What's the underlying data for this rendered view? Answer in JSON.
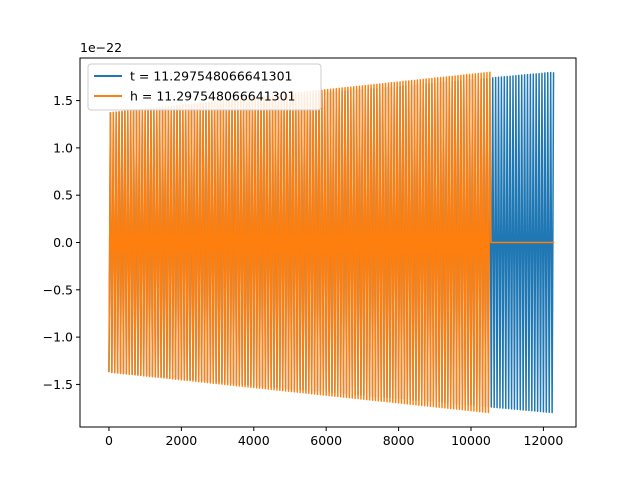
{
  "chart_data": {
    "type": "line",
    "title": "",
    "xlabel": "",
    "ylabel": "",
    "y_offset_label": "1e−22",
    "xlim": [
      -800,
      12900
    ],
    "ylim": [
      -1.95,
      1.95
    ],
    "xticks": [
      0,
      2000,
      4000,
      6000,
      8000,
      10000,
      12000
    ],
    "xtick_labels": [
      "0",
      "2000",
      "4000",
      "6000",
      "8000",
      "10000",
      "12000"
    ],
    "yticks": [
      -1.5,
      -1.0,
      -0.5,
      0.0,
      0.5,
      1.0,
      1.5
    ],
    "ytick_labels": [
      "−1.5",
      "−1.0",
      "−0.5",
      "0.0",
      "0.5",
      "1.0",
      "1.5"
    ],
    "grid": false,
    "legend_position": "upper-left",
    "series": [
      {
        "name": "t = 11.297548066641301",
        "color": "#1f77b4",
        "x_start": 0,
        "x_end": 12300,
        "amplitude_start": 1.37,
        "amplitude_end": 1.8,
        "flat_after_x": null
      },
      {
        "name": "h = 11.297548066641301",
        "color": "#ff7f0e",
        "x_start": 0,
        "x_end": 10550,
        "amplitude_start": 1.37,
        "amplitude_end": 1.8,
        "flat_after_x": 10550,
        "flat_until_x": 12300,
        "flat_value": 0.0
      }
    ]
  }
}
